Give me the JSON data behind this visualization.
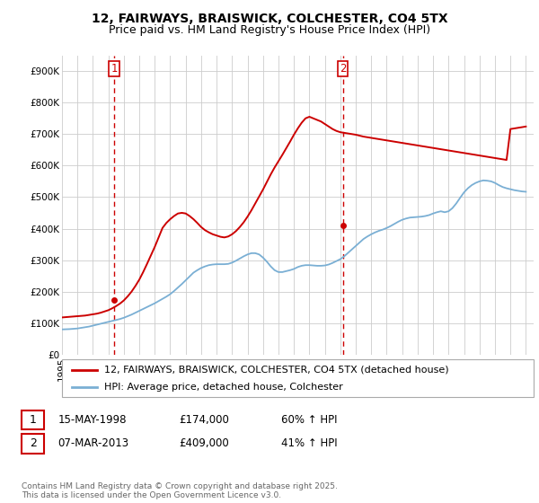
{
  "title": "12, FAIRWAYS, BRAISWICK, COLCHESTER, CO4 5TX",
  "subtitle": "Price paid vs. HM Land Registry's House Price Index (HPI)",
  "ylim": [
    0,
    950000
  ],
  "yticks": [
    0,
    100000,
    200000,
    300000,
    400000,
    500000,
    600000,
    700000,
    800000,
    900000
  ],
  "ytick_labels": [
    "£0",
    "£100K",
    "£200K",
    "£300K",
    "£400K",
    "£500K",
    "£600K",
    "£700K",
    "£800K",
    "£900K"
  ],
  "line1_color": "#cc0000",
  "line2_color": "#7aafd4",
  "vline_color": "#cc0000",
  "background_color": "#ffffff",
  "grid_color": "#cccccc",
  "legend1_label": "12, FAIRWAYS, BRAISWICK, COLCHESTER, CO4 5TX (detached house)",
  "legend2_label": "HPI: Average price, detached house, Colchester",
  "transaction1_date": "15-MAY-1998",
  "transaction1_price": "£174,000",
  "transaction1_hpi": "60% ↑ HPI",
  "transaction2_date": "07-MAR-2013",
  "transaction2_price": "£409,000",
  "transaction2_hpi": "41% ↑ HPI",
  "copyright_text": "Contains HM Land Registry data © Crown copyright and database right 2025.\nThis data is licensed under the Open Government Licence v3.0.",
  "title_fontsize": 10,
  "subtitle_fontsize": 9,
  "tick_fontsize": 7.5,
  "legend_fontsize": 8,
  "annotation_fontsize": 8.5,
  "copyright_fontsize": 6.5,
  "hpi_years": [
    1995,
    1995.25,
    1995.5,
    1995.75,
    1996,
    1996.25,
    1996.5,
    1996.75,
    1997,
    1997.25,
    1997.5,
    1997.75,
    1998,
    1998.25,
    1998.5,
    1998.75,
    1999,
    1999.25,
    1999.5,
    1999.75,
    2000,
    2000.25,
    2000.5,
    2000.75,
    2001,
    2001.25,
    2001.5,
    2001.75,
    2002,
    2002.25,
    2002.5,
    2002.75,
    2003,
    2003.25,
    2003.5,
    2003.75,
    2004,
    2004.25,
    2004.5,
    2004.75,
    2005,
    2005.25,
    2005.5,
    2005.75,
    2006,
    2006.25,
    2006.5,
    2006.75,
    2007,
    2007.25,
    2007.5,
    2007.75,
    2008,
    2008.25,
    2008.5,
    2008.75,
    2009,
    2009.25,
    2009.5,
    2009.75,
    2010,
    2010.25,
    2010.5,
    2010.75,
    2011,
    2011.25,
    2011.5,
    2011.75,
    2012,
    2012.25,
    2012.5,
    2012.75,
    2013,
    2013.25,
    2013.5,
    2013.75,
    2014,
    2014.25,
    2014.5,
    2014.75,
    2015,
    2015.25,
    2015.5,
    2015.75,
    2016,
    2016.25,
    2016.5,
    2016.75,
    2017,
    2017.25,
    2017.5,
    2017.75,
    2018,
    2018.25,
    2018.5,
    2018.75,
    2019,
    2019.25,
    2019.5,
    2019.75,
    2020,
    2020.25,
    2020.5,
    2020.75,
    2021,
    2021.25,
    2021.5,
    2021.75,
    2022,
    2022.25,
    2022.5,
    2022.75,
    2023,
    2023.25,
    2023.5,
    2023.75,
    2024,
    2024.25,
    2024.5,
    2024.75,
    2025
  ],
  "hpi_values": [
    80000,
    80500,
    81000,
    82000,
    83000,
    85000,
    87000,
    89000,
    92000,
    95000,
    98000,
    101000,
    104000,
    107000,
    110000,
    113000,
    117000,
    122000,
    127000,
    133000,
    139000,
    145000,
    151000,
    157000,
    163000,
    170000,
    177000,
    184000,
    192000,
    202000,
    213000,
    224000,
    236000,
    248000,
    260000,
    268000,
    275000,
    280000,
    284000,
    286000,
    287000,
    287000,
    287000,
    288000,
    292000,
    298000,
    305000,
    312000,
    318000,
    322000,
    322000,
    318000,
    308000,
    295000,
    280000,
    268000,
    262000,
    262000,
    265000,
    268000,
    272000,
    278000,
    282000,
    284000,
    284000,
    283000,
    282000,
    282000,
    283000,
    286000,
    291000,
    297000,
    303000,
    312000,
    323000,
    334000,
    345000,
    356000,
    367000,
    375000,
    382000,
    388000,
    393000,
    397000,
    402000,
    408000,
    415000,
    422000,
    428000,
    432000,
    435000,
    436000,
    437000,
    438000,
    440000,
    443000,
    448000,
    452000,
    455000,
    452000,
    455000,
    465000,
    480000,
    498000,
    515000,
    528000,
    538000,
    545000,
    550000,
    553000,
    552000,
    550000,
    545000,
    538000,
    532000,
    528000,
    525000,
    522000,
    520000,
    518000,
    517000
  ],
  "price_line_years": [
    1995,
    1995.25,
    1995.5,
    1995.75,
    1996,
    1996.25,
    1996.5,
    1996.75,
    1997,
    1997.25,
    1997.5,
    1997.75,
    1998,
    1998.25,
    1998.5,
    1998.75,
    1999,
    1999.25,
    1999.5,
    1999.75,
    2000,
    2000.25,
    2000.5,
    2000.75,
    2001,
    2001.25,
    2001.5,
    2001.75,
    2002,
    2002.25,
    2002.5,
    2002.75,
    2003,
    2003.25,
    2003.5,
    2003.75,
    2004,
    2004.25,
    2004.5,
    2004.75,
    2005,
    2005.25,
    2005.5,
    2005.75,
    2006,
    2006.25,
    2006.5,
    2006.75,
    2007,
    2007.25,
    2007.5,
    2007.75,
    2008,
    2008.25,
    2008.5,
    2008.75,
    2009,
    2009.25,
    2009.5,
    2009.75,
    2010,
    2010.25,
    2010.5,
    2010.75,
    2011,
    2011.25,
    2011.5,
    2011.75,
    2012,
    2012.25,
    2012.5,
    2012.75,
    2013,
    2013.25,
    2013.5,
    2013.75,
    2014,
    2014.25,
    2014.5,
    2014.75,
    2015,
    2015.25,
    2015.5,
    2015.75,
    2016,
    2016.25,
    2016.5,
    2016.75,
    2017,
    2017.25,
    2017.5,
    2017.75,
    2018,
    2018.25,
    2018.5,
    2018.75,
    2019,
    2019.25,
    2019.5,
    2019.75,
    2020,
    2020.25,
    2020.5,
    2020.75,
    2021,
    2021.25,
    2021.5,
    2021.75,
    2022,
    2022.25,
    2022.5,
    2022.75,
    2023,
    2023.25,
    2023.5,
    2023.75,
    2024,
    2024.25,
    2024.5,
    2024.75,
    2025
  ],
  "price_line_values": [
    118000,
    119000,
    120000,
    121000,
    122000,
    123000,
    124000,
    126000,
    128000,
    130000,
    133000,
    137000,
    141000,
    147000,
    154000,
    162000,
    172000,
    185000,
    200000,
    218000,
    238000,
    262000,
    288000,
    315000,
    342000,
    372000,
    402000,
    418000,
    430000,
    440000,
    448000,
    450000,
    448000,
    440000,
    430000,
    418000,
    405000,
    395000,
    388000,
    382000,
    378000,
    374000,
    372000,
    375000,
    382000,
    392000,
    405000,
    420000,
    438000,
    458000,
    480000,
    502000,
    524000,
    548000,
    572000,
    594000,
    614000,
    634000,
    655000,
    676000,
    698000,
    718000,
    736000,
    750000,
    755000,
    750000,
    745000,
    740000,
    732000,
    724000,
    716000,
    710000,
    706000,
    704000,
    702000,
    700000,
    698000,
    695000,
    692000,
    690000,
    688000,
    686000,
    684000,
    682000,
    680000,
    678000,
    676000,
    674000,
    672000,
    670000,
    668000,
    666000,
    664000,
    662000,
    660000,
    658000,
    656000,
    654000,
    652000,
    650000,
    648000,
    646000,
    644000,
    642000,
    640000,
    638000,
    636000,
    634000,
    632000,
    630000,
    628000,
    626000,
    624000,
    622000,
    620000,
    618000,
    716000,
    718000,
    720000,
    722000,
    724000
  ],
  "transaction1_year": 1998.37,
  "transaction2_year": 2013.17,
  "transaction1_price_val": 174000,
  "transaction2_price_val": 409000
}
